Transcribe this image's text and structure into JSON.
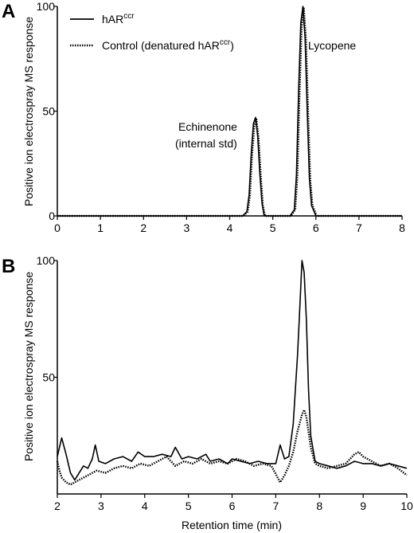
{
  "legend": {
    "solid": {
      "label": "hAR",
      "sup": "ccr"
    },
    "dotted": {
      "label": "Control (denatured hAR",
      "sup": "ccr",
      "suffix": ")"
    }
  },
  "chart_data": [
    {
      "panel": "A",
      "type": "line",
      "xlim": [
        0,
        8
      ],
      "ylim": [
        0,
        100
      ],
      "xticks": [
        0,
        1,
        2,
        3,
        4,
        5,
        6,
        7,
        8
      ],
      "yticks": [
        0,
        50,
        100
      ],
      "xlabel": "",
      "ylabel": "Positive ion electrospray MS response",
      "annotations": [
        {
          "text": "Echinenone",
          "x": 4.58,
          "y": 47
        },
        {
          "text": "(internal std)",
          "x": 4.58,
          "y": 47
        },
        {
          "text": "Lycopene",
          "x": 5.72,
          "y": 100
        }
      ],
      "series": [
        {
          "name": "hARᶜᶜʳ",
          "style": "solid",
          "x": [
            0,
            4.3,
            4.4,
            4.45,
            4.5,
            4.55,
            4.6,
            4.65,
            4.7,
            4.75,
            4.8,
            5.4,
            5.5,
            5.55,
            5.6,
            5.65,
            5.7,
            5.75,
            5.8,
            5.85,
            5.9,
            6.0,
            8.0
          ],
          "y": [
            0,
            0,
            2,
            10,
            30,
            44,
            47,
            38,
            20,
            6,
            0,
            0,
            3,
            20,
            60,
            92,
            100,
            85,
            50,
            18,
            5,
            0,
            0
          ]
        },
        {
          "name": "Control (denatured hARᶜᶜʳ)",
          "style": "dotted",
          "x": [
            0,
            4.32,
            4.42,
            4.47,
            4.52,
            4.57,
            4.62,
            4.67,
            4.72,
            4.77,
            4.82,
            5.42,
            5.52,
            5.57,
            5.62,
            5.67,
            5.72,
            5.77,
            5.82,
            5.87,
            5.92,
            6.02,
            8.0
          ],
          "y": [
            0,
            0,
            2,
            10,
            29,
            43,
            46,
            37,
            19,
            5,
            0,
            0,
            3,
            19,
            58,
            90,
            99,
            84,
            49,
            17,
            5,
            0,
            0
          ]
        }
      ]
    },
    {
      "panel": "B",
      "type": "line",
      "xlim": [
        2,
        10
      ],
      "ylim": [
        0,
        100
      ],
      "xticks": [
        2,
        3,
        4,
        5,
        6,
        7,
        8,
        9,
        10
      ],
      "yticks": [
        50,
        100
      ],
      "xlabel": "Retention time (min)",
      "ylabel": "Positive ion electrospray MS response",
      "series": [
        {
          "name": "hARᶜᶜʳ",
          "style": "solid",
          "x": [
            2.0,
            2.05,
            2.1,
            2.2,
            2.3,
            2.4,
            2.5,
            2.6,
            2.7,
            2.8,
            2.87,
            2.95,
            3.1,
            3.3,
            3.5,
            3.7,
            3.85,
            4.0,
            4.2,
            4.4,
            4.6,
            4.7,
            4.85,
            5.0,
            5.2,
            5.4,
            5.5,
            5.7,
            5.9,
            6.0,
            6.2,
            6.4,
            6.6,
            6.8,
            7.0,
            7.1,
            7.2,
            7.3,
            7.4,
            7.5,
            7.55,
            7.6,
            7.65,
            7.7,
            7.75,
            7.8,
            7.9,
            8.0,
            8.2,
            8.4,
            8.6,
            8.8,
            9.0,
            9.2,
            9.4,
            9.6,
            9.8,
            10.0
          ],
          "y": [
            16,
            20,
            24,
            17,
            9,
            6,
            9,
            12,
            11,
            15,
            21,
            14,
            13,
            15,
            16,
            14,
            18,
            16,
            16,
            17,
            16,
            20,
            15,
            16,
            15,
            17,
            14,
            15,
            13,
            15,
            14,
            13,
            14,
            13,
            13,
            21,
            15,
            16,
            30,
            60,
            80,
            100,
            95,
            75,
            45,
            25,
            14,
            13,
            12,
            11,
            12,
            14,
            13,
            13,
            12,
            13,
            12,
            11
          ]
        },
        {
          "name": "Control (denatured hARᶜᶜʳ)",
          "style": "dotted",
          "x": [
            2.0,
            2.05,
            2.1,
            2.2,
            2.3,
            2.5,
            2.7,
            2.9,
            3.1,
            3.3,
            3.5,
            3.7,
            3.9,
            4.1,
            4.3,
            4.5,
            4.7,
            4.9,
            5.1,
            5.3,
            5.5,
            5.7,
            5.9,
            6.1,
            6.3,
            6.5,
            6.7,
            6.9,
            7.1,
            7.2,
            7.3,
            7.4,
            7.5,
            7.6,
            7.65,
            7.7,
            7.8,
            7.9,
            8.0,
            8.2,
            8.4,
            8.6,
            8.8,
            8.9,
            9.0,
            9.2,
            9.4,
            9.6,
            9.8,
            10.0
          ],
          "y": [
            14,
            10,
            7,
            5,
            4,
            6,
            8,
            10,
            9,
            11,
            12,
            11,
            13,
            12,
            14,
            16,
            12,
            14,
            13,
            15,
            13,
            14,
            13,
            15,
            14,
            12,
            13,
            12,
            5,
            8,
            12,
            18,
            27,
            34,
            36,
            33,
            20,
            13,
            12,
            11,
            12,
            13,
            17,
            18,
            16,
            14,
            12,
            13,
            11,
            8
          ]
        }
      ]
    }
  ]
}
